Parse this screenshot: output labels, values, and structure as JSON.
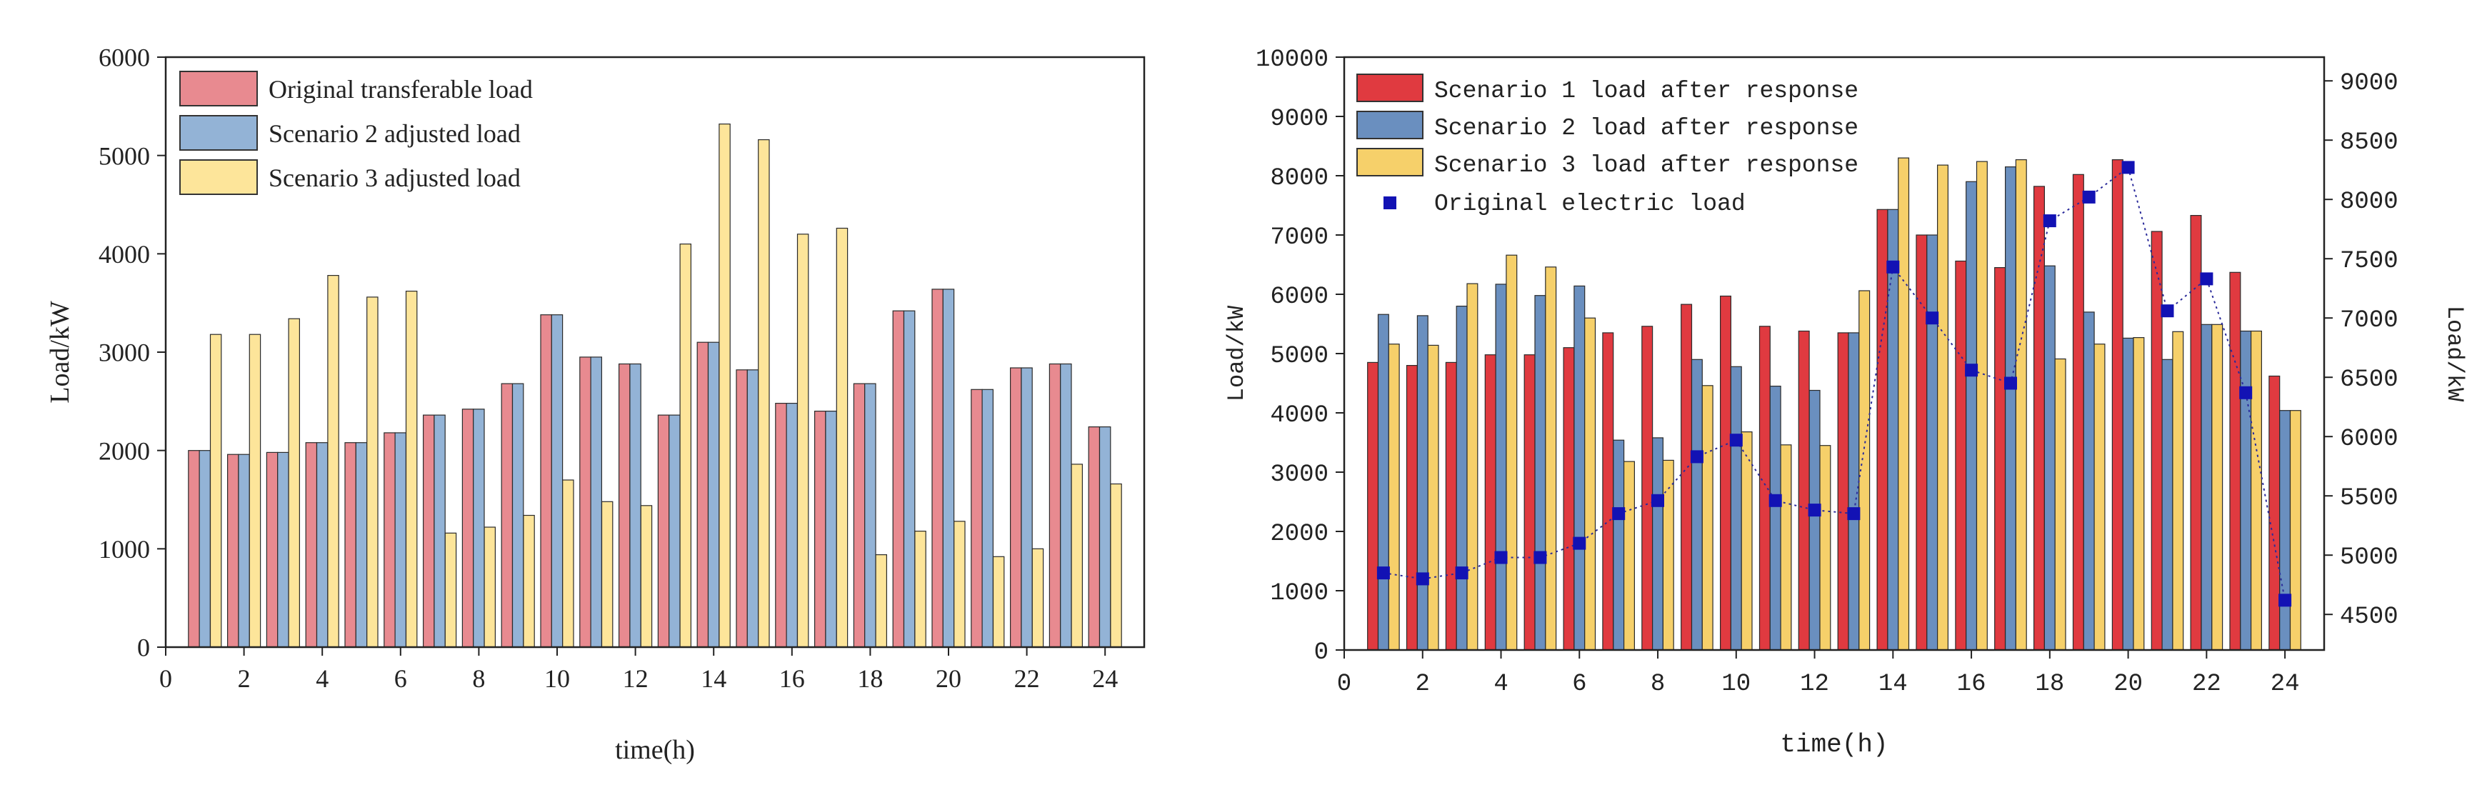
{
  "chart_data": [
    {
      "type": "bar",
      "title": "",
      "xlabel": "time(h)",
      "ylabel": "Load/kW",
      "xlim": [
        0,
        25
      ],
      "ylim": [
        0,
        6000
      ],
      "x_ticks": [
        "0",
        "2",
        "4",
        "6",
        "8",
        "10",
        "12",
        "14",
        "16",
        "18",
        "20",
        "22",
        "24"
      ],
      "y_ticks": [
        "0",
        "1000",
        "2000",
        "3000",
        "4000",
        "5000",
        "6000"
      ],
      "legend_position": "top-left",
      "categories": [
        "1",
        "2",
        "3",
        "4",
        "5",
        "6",
        "7",
        "8",
        "9",
        "10",
        "11",
        "12",
        "13",
        "14",
        "15",
        "16",
        "17",
        "18",
        "19",
        "20",
        "21",
        "22",
        "23",
        "24"
      ],
      "series": [
        {
          "name": "Original transferable load",
          "color": "#e88a90",
          "values": [
            2000,
            1960,
            1980,
            2080,
            2080,
            2180,
            2360,
            2420,
            2680,
            3380,
            2950,
            2880,
            2360,
            3100,
            2820,
            2480,
            2400,
            2680,
            3420,
            3640,
            2620,
            2840,
            2880,
            2240
          ]
        },
        {
          "name": "Scenario 2 adjusted load",
          "color": "#93b3d6",
          "values": [
            2000,
            1960,
            1980,
            2080,
            2080,
            2180,
            2360,
            2420,
            2680,
            3380,
            2950,
            2880,
            2360,
            3100,
            2820,
            2480,
            2400,
            2680,
            3420,
            3640,
            2620,
            2840,
            2880,
            2240
          ]
        },
        {
          "name": "Scenario 3 adjusted load",
          "color": "#fde59a",
          "values": [
            3180,
            3180,
            3340,
            3780,
            3560,
            3620,
            1160,
            1220,
            1340,
            1700,
            1480,
            1440,
            4100,
            5320,
            5160,
            4200,
            4260,
            940,
            1180,
            1280,
            920,
            1000,
            1860,
            1660
          ]
        }
      ]
    },
    {
      "type": "bar",
      "title": "",
      "xlabel": "time(h)",
      "ylabel": "Load/kW",
      "y2label": "Load/kW",
      "xlim": [
        0,
        25
      ],
      "ylim": [
        0,
        10000
      ],
      "y2lim": [
        4200,
        9200
      ],
      "x_ticks": [
        "0",
        "2",
        "4",
        "6",
        "8",
        "10",
        "12",
        "14",
        "16",
        "18",
        "20",
        "22",
        "24"
      ],
      "y_ticks": [
        "0",
        "1000",
        "2000",
        "3000",
        "4000",
        "5000",
        "6000",
        "7000",
        "8000",
        "9000",
        "10000"
      ],
      "y2_ticks": [
        "4500",
        "5000",
        "5500",
        "6000",
        "6500",
        "7000",
        "7500",
        "8000",
        "8500",
        "9000"
      ],
      "legend_position": "top-left",
      "categories": [
        "1",
        "2",
        "3",
        "4",
        "5",
        "6",
        "7",
        "8",
        "9",
        "10",
        "11",
        "12",
        "13",
        "14",
        "15",
        "16",
        "17",
        "18",
        "19",
        "20",
        "21",
        "22",
        "23",
        "24"
      ],
      "series": [
        {
          "name": "Scenario 1 load after response",
          "color": "#e03a40",
          "values": [
            4850,
            4800,
            4850,
            4980,
            4980,
            5100,
            5350,
            5460,
            5830,
            5970,
            5460,
            5380,
            5350,
            7430,
            7000,
            6560,
            6450,
            7820,
            8020,
            8270,
            7060,
            7330,
            6370,
            4620
          ]
        },
        {
          "name": "Scenario 2 load after response",
          "color": "#6a8fbf",
          "values": [
            5660,
            5640,
            5800,
            6170,
            5980,
            6140,
            3540,
            3580,
            4900,
            4780,
            4450,
            4380,
            5350,
            7430,
            7000,
            7900,
            8150,
            6480,
            5700,
            5260,
            4900,
            5490,
            5380,
            4040
          ]
        },
        {
          "name": "Scenario 3 load after response",
          "color": "#f6d06a",
          "values": [
            5160,
            5140,
            6180,
            6660,
            6460,
            5600,
            3180,
            3200,
            4460,
            3680,
            3460,
            3450,
            6060,
            8300,
            8180,
            8240,
            8270,
            4910,
            5160,
            5270,
            5370,
            5490,
            5380,
            4040
          ]
        },
        {
          "name": "Original electric load",
          "type": "scatter",
          "axis": "right",
          "color": "#1212b4",
          "values": [
            4850,
            4800,
            4850,
            4980,
            4980,
            5100,
            5350,
            5460,
            5830,
            5970,
            5460,
            5380,
            5350,
            7430,
            7000,
            6560,
            6450,
            7820,
            8020,
            8270,
            7060,
            7330,
            6370,
            4620
          ]
        }
      ]
    }
  ]
}
